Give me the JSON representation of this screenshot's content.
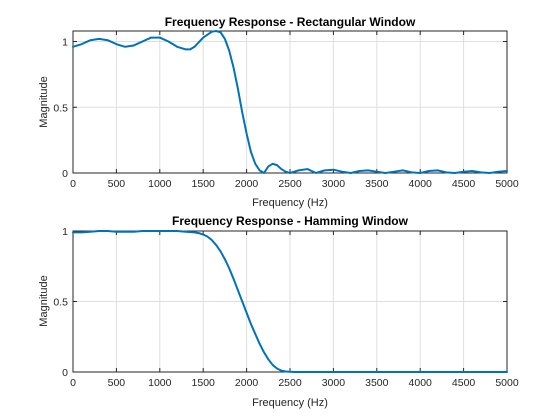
{
  "chart_data": [
    {
      "type": "line",
      "title": "Frequency Response - Rectangular Window",
      "xlabel": "Frequency (Hz)",
      "ylabel": "Magnitude",
      "xlim": [
        0,
        5000
      ],
      "ylim": [
        0,
        1.08
      ],
      "xticks": [
        0,
        500,
        1000,
        1500,
        2000,
        2500,
        3000,
        3500,
        4000,
        4500,
        5000
      ],
      "yticks": [
        0,
        0.5,
        1
      ],
      "xtick_labels": [
        "0",
        "500",
        "1000",
        "1500",
        "2000",
        "2500",
        "3000",
        "3500",
        "4000",
        "4500",
        "5000"
      ],
      "ytick_labels": [
        "0",
        "0.5",
        "1"
      ],
      "grid": true,
      "color": "#0072bd",
      "series": [
        {
          "x": [
            0,
            100,
            200,
            300,
            400,
            500,
            600,
            700,
            800,
            900,
            1000,
            1100,
            1200,
            1300,
            1350,
            1400,
            1500,
            1600,
            1650,
            1700,
            1750,
            1800,
            1850,
            1900,
            1950,
            2000,
            2050,
            2100,
            2150,
            2200,
            2250,
            2300,
            2350,
            2400,
            2450,
            2500,
            2600,
            2700,
            2800,
            2900,
            3000,
            3100,
            3200,
            3300,
            3400,
            3500,
            3600,
            3700,
            3800,
            3900,
            4000,
            4100,
            4200,
            4300,
            4400,
            4500,
            4600,
            4700,
            4800,
            4900,
            5000
          ],
          "y": [
            0.96,
            0.98,
            1.01,
            1.02,
            1.01,
            0.98,
            0.96,
            0.97,
            1.0,
            1.03,
            1.03,
            1.0,
            0.96,
            0.94,
            0.94,
            0.96,
            1.03,
            1.075,
            1.08,
            1.07,
            1.02,
            0.93,
            0.8,
            0.64,
            0.46,
            0.3,
            0.16,
            0.07,
            0.02,
            0.0,
            0.05,
            0.07,
            0.06,
            0.03,
            0.01,
            0.0,
            0.02,
            0.03,
            0.0,
            0.02,
            0.025,
            0.01,
            0.0,
            0.015,
            0.02,
            0.01,
            0.0,
            0.01,
            0.02,
            0.005,
            0.0,
            0.015,
            0.02,
            0.005,
            0.0,
            0.01,
            0.015,
            0.005,
            0.0,
            0.01,
            0.015
          ]
        }
      ]
    },
    {
      "type": "line",
      "title": "Frequency Response - Hamming Window",
      "xlabel": "Frequency (Hz)",
      "ylabel": "Magnitude",
      "xlim": [
        0,
        5000
      ],
      "ylim": [
        0,
        1
      ],
      "xticks": [
        0,
        500,
        1000,
        1500,
        2000,
        2500,
        3000,
        3500,
        4000,
        4500,
        5000
      ],
      "yticks": [
        0,
        0.5,
        1
      ],
      "xtick_labels": [
        "0",
        "500",
        "1000",
        "1500",
        "2000",
        "2500",
        "3000",
        "3500",
        "4000",
        "4500",
        "5000"
      ],
      "ytick_labels": [
        "0",
        "0.5",
        "1"
      ],
      "grid": true,
      "color": "#0072bd",
      "series": [
        {
          "x": [
            0,
            100,
            200,
            300,
            400,
            500,
            600,
            700,
            800,
            900,
            1000,
            1100,
            1200,
            1300,
            1400,
            1450,
            1500,
            1550,
            1600,
            1650,
            1700,
            1750,
            1800,
            1850,
            1900,
            1950,
            2000,
            2050,
            2100,
            2150,
            2200,
            2250,
            2300,
            2350,
            2400,
            2450,
            2500,
            2550,
            2600,
            2700,
            2800,
            2900,
            3000,
            3200,
            3400,
            3600,
            3800,
            4000,
            4200,
            4400,
            4600,
            4800,
            5000
          ],
          "y": [
            0.99,
            0.99,
            0.995,
            1.0,
            1.0,
            0.995,
            0.995,
            0.995,
            1.0,
            1.0,
            1.0,
            1.0,
            1.0,
            0.995,
            0.99,
            0.985,
            0.975,
            0.96,
            0.935,
            0.9,
            0.855,
            0.8,
            0.735,
            0.66,
            0.58,
            0.5,
            0.42,
            0.34,
            0.27,
            0.2,
            0.14,
            0.09,
            0.05,
            0.025,
            0.01,
            0.004,
            0.002,
            0.0,
            0.0,
            0.0,
            0.0,
            0.0,
            0.0,
            0.0,
            0.0,
            0.0,
            0.0,
            0.0,
            0.0,
            0.0,
            0.0,
            0.0,
            0.0
          ]
        }
      ]
    }
  ]
}
